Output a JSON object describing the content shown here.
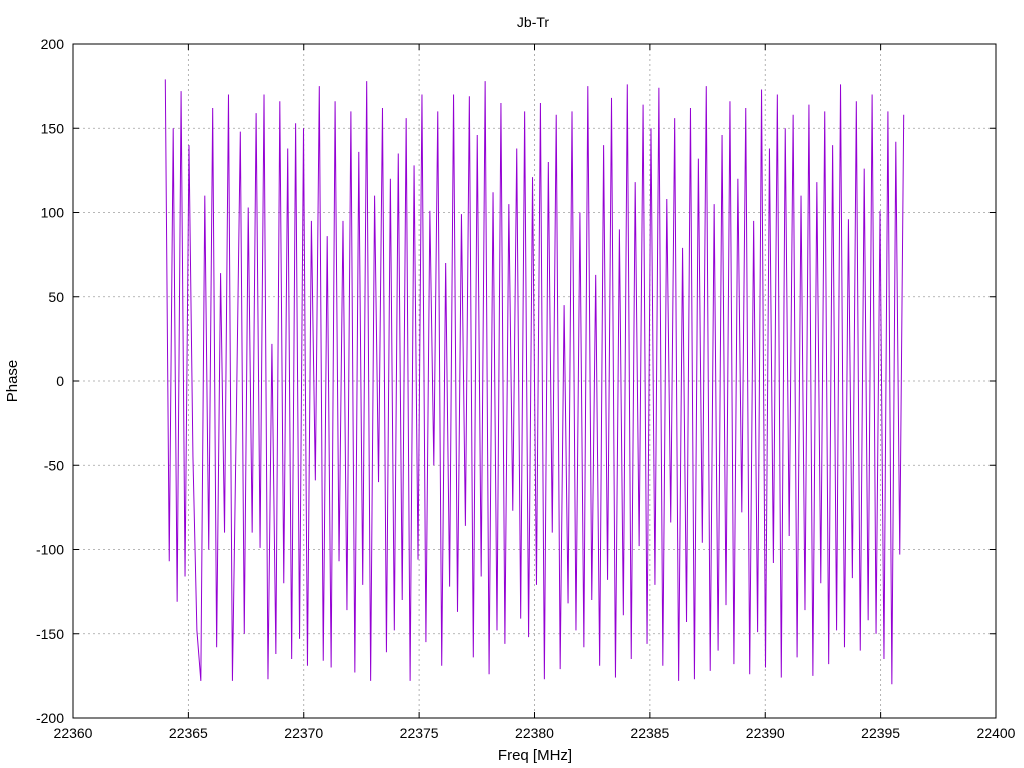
{
  "chart_data": {
    "type": "line",
    "title": "Jb-Tr",
    "xlabel": "Freq [MHz]",
    "ylabel": "Phase",
    "xlim": [
      22360,
      22400
    ],
    "ylim": [
      -200,
      200
    ],
    "xticks": [
      22360,
      22365,
      22370,
      22375,
      22380,
      22385,
      22390,
      22395,
      22400
    ],
    "yticks": [
      -200,
      -150,
      -100,
      -50,
      0,
      50,
      100,
      150,
      200
    ],
    "grid": true,
    "series": [
      {
        "color": "#9400d3",
        "x_start": 22364.0,
        "x_end": 22396.0,
        "values": [
          179,
          -107,
          150,
          -131,
          172,
          -116,
          140,
          -45,
          -148,
          -178,
          110,
          -100,
          162,
          -158,
          64,
          -90,
          170,
          -178,
          -20,
          148,
          -150,
          103,
          -90,
          159,
          -99,
          170,
          -177,
          22,
          -162,
          166,
          -120,
          138,
          -165,
          153,
          -153,
          150,
          -169,
          95,
          -59,
          175,
          -166,
          86,
          -170,
          166,
          -107,
          95,
          -136,
          160,
          -173,
          136,
          -121,
          178,
          -178,
          110,
          -60,
          162,
          -161,
          120,
          -148,
          135,
          -130,
          156,
          -178,
          128,
          -106,
          170,
          -155,
          101,
          -50,
          160,
          -169,
          70,
          -122,
          170,
          -137,
          99,
          -86,
          169,
          -164,
          146,
          -116,
          178,
          -174,
          112,
          -148,
          165,
          -156,
          105,
          -77,
          138,
          -141,
          160,
          -152,
          121,
          -121,
          165,
          -177,
          130,
          -90,
          158,
          -171,
          45,
          -132,
          160,
          -148,
          100,
          -158,
          175,
          -130,
          63,
          -169,
          140,
          -118,
          168,
          -176,
          90,
          -139,
          176,
          -165,
          118,
          -98,
          164,
          -156,
          150,
          -121,
          174,
          -169,
          108,
          -84,
          156,
          -178,
          79,
          -143,
          162,
          -177,
          132,
          -96,
          175,
          -172,
          105,
          -160,
          146,
          -133,
          166,
          -168,
          120,
          -78,
          162,
          -174,
          95,
          -149,
          173,
          -170,
          138,
          -108,
          170,
          -176,
          150,
          -92,
          158,
          -164,
          110,
          -136,
          164,
          -175,
          118,
          -120,
          160,
          -168,
          140,
          -148,
          176,
          -158,
          96,
          -117,
          166,
          -160,
          126,
          -142,
          170,
          -150,
          101,
          -165,
          160,
          -180,
          142,
          -103,
          158
        ]
      }
    ]
  }
}
